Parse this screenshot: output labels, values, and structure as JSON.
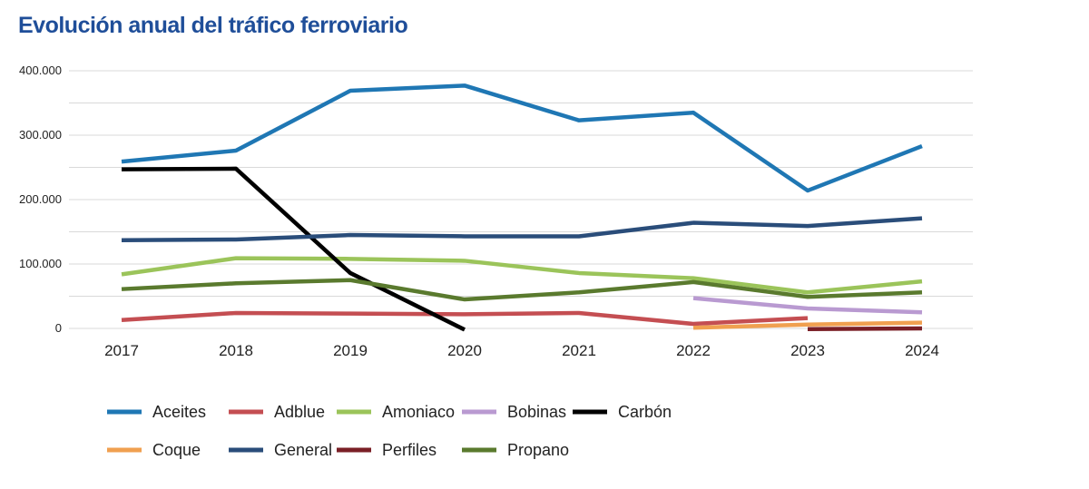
{
  "chart_data": {
    "type": "line",
    "title": "Evolución anual del tráfico ferroviario",
    "xlabel": "",
    "ylabel": "",
    "x": [
      "2017",
      "2018",
      "2019",
      "2020",
      "2021",
      "2022",
      "2023",
      "2024"
    ],
    "ylim": [
      0,
      400000
    ],
    "yticks": [
      0,
      100000,
      200000,
      300000,
      400000
    ],
    "ytick_labels": [
      "0",
      "100.000",
      "200.000",
      "300.000",
      "400.000"
    ],
    "grid": true,
    "legend_position": "bottom",
    "series": [
      {
        "name": "Aceites",
        "color": "#1f77b4",
        "values": [
          259000,
          276000,
          369000,
          377000,
          323000,
          335000,
          214000,
          283000
        ]
      },
      {
        "name": "Adblue",
        "color": "#c44e52",
        "values": [
          13000,
          24000,
          23000,
          22000,
          24000,
          7000,
          16000,
          null
        ]
      },
      {
        "name": "Amoniaco",
        "color": "#9bc45a",
        "values": [
          84000,
          109000,
          108000,
          105000,
          86000,
          78000,
          56000,
          73000
        ]
      },
      {
        "name": "Bobinas",
        "color": "#b99ad1",
        "values": [
          null,
          null,
          null,
          null,
          null,
          47000,
          31000,
          25000
        ]
      },
      {
        "name": "Carbón",
        "color": "#000000",
        "values": [
          247000,
          248000,
          86000,
          -2000,
          null,
          null,
          null,
          null
        ]
      },
      {
        "name": "Coque",
        "color": "#f0a050",
        "values": [
          null,
          null,
          null,
          null,
          null,
          1000,
          6000,
          9000
        ]
      },
      {
        "name": "General",
        "color": "#2a4d7a",
        "values": [
          137000,
          138000,
          145000,
          143000,
          143000,
          164000,
          159000,
          171000
        ]
      },
      {
        "name": "Perfiles",
        "color": "#7a1f26",
        "values": [
          null,
          null,
          null,
          null,
          null,
          null,
          -1000,
          0
        ]
      },
      {
        "name": "Propano",
        "color": "#5a7a2e",
        "values": [
          61000,
          70000,
          75000,
          45000,
          56000,
          72000,
          49000,
          56000
        ]
      }
    ]
  }
}
